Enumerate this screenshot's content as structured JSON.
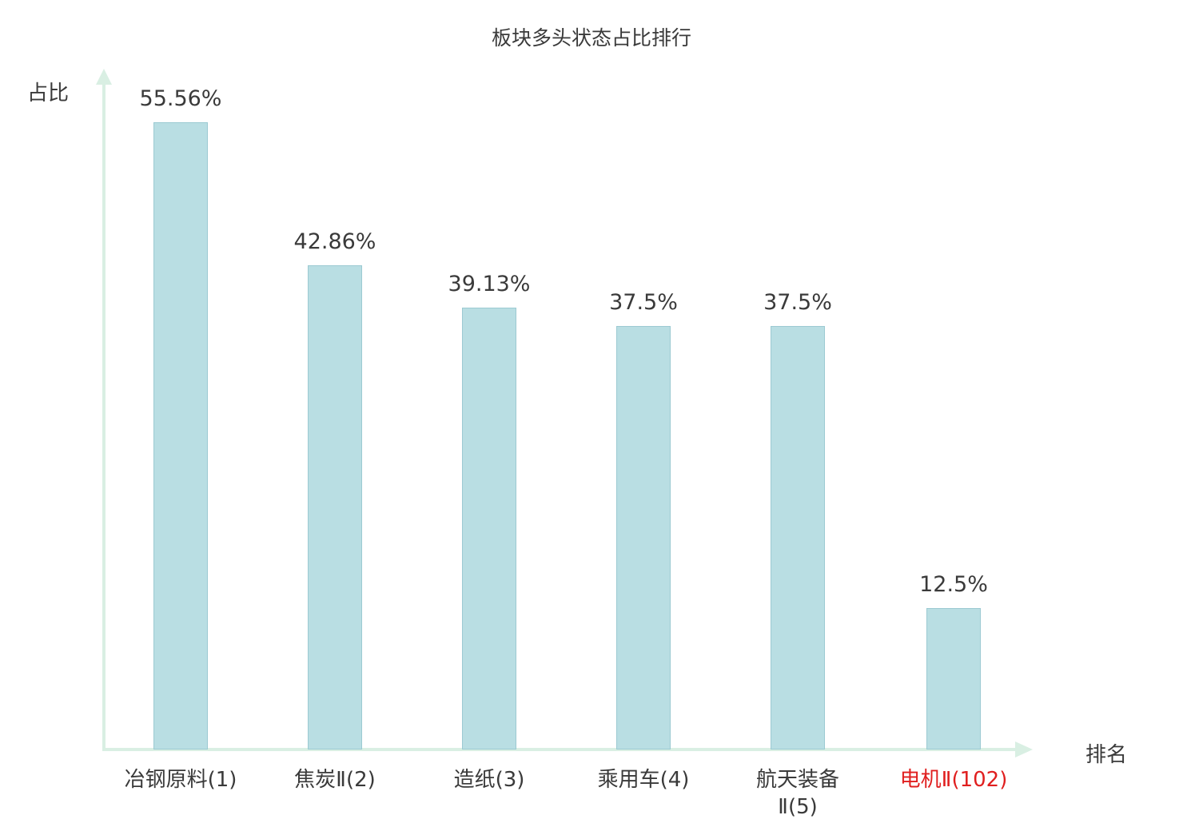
{
  "chart_data": {
    "type": "bar",
    "title": "板块多头状态占比排行",
    "xlabel": "排名",
    "ylabel": "占比",
    "categories": [
      "冶钢原料(1)",
      "焦炭Ⅱ(2)",
      "造纸(3)",
      "乘用车(4)",
      "航天装备Ⅱ(5)",
      "电机Ⅱ(102)"
    ],
    "categories_display": [
      "冶钢原料(1)",
      "焦炭Ⅱ(2)",
      "造纸(3)",
      "乘用车(4)",
      "航天装备\nⅡ(5)",
      "电机Ⅱ(102)"
    ],
    "values": [
      55.56,
      42.86,
      39.13,
      37.5,
      37.5,
      12.5
    ],
    "value_labels": [
      "55.56%",
      "42.86%",
      "39.13%",
      "37.5%",
      "37.5%",
      "12.5%"
    ],
    "highlighted_index": 5,
    "ylim": [
      0,
      60
    ],
    "grid": false,
    "legend_position": "none",
    "bar_color": "#b9dee3",
    "bar_border_color": "#9ccad2",
    "highlight_color": "#e01f1f",
    "axis_color": "#d9efe3",
    "text_color": "#3a3a3a"
  }
}
